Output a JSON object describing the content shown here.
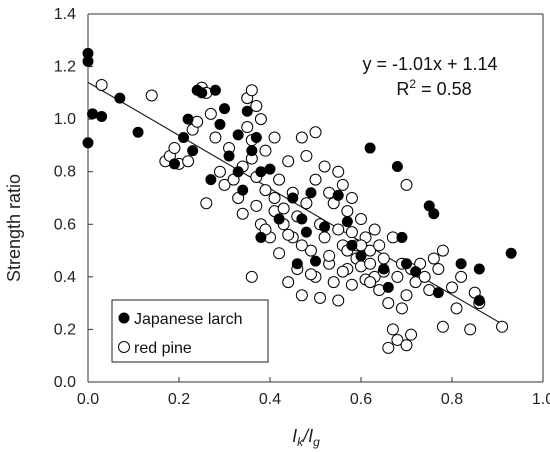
{
  "chart_data": {
    "type": "scatter",
    "xlabel": "Ik/Ig",
    "xlabel_main": "I",
    "xlabel_sub1": "k",
    "xlabel_sep": "/I",
    "xlabel_sub2": "g",
    "ylabel": "Strength ratio",
    "xlim": [
      0,
      1.0
    ],
    "ylim": [
      0,
      1.4
    ],
    "xticks": [
      "0.0",
      "0.2",
      "0.4",
      "0.6",
      "0.8",
      "1.0"
    ],
    "yticks": [
      "0.0",
      "0.2",
      "0.4",
      "0.6",
      "0.8",
      "1.0",
      "1.2",
      "1.4"
    ],
    "grid": false,
    "legend_position": "bottom-left",
    "annotation": {
      "equation": "y = -1.01x + 1.14",
      "r2_prefix": "R",
      "r2_exp": "2",
      "r2_suffix": " = 0.58"
    },
    "trendline": {
      "slope": -1.01,
      "intercept": 1.14,
      "x_range": [
        0.0,
        0.92
      ]
    },
    "series": [
      {
        "name": "Japanese larch",
        "marker": "filled",
        "color": "#000000",
        "points": [
          [
            0.0,
            1.25
          ],
          [
            0.0,
            1.22
          ],
          [
            0.0,
            0.91
          ],
          [
            0.01,
            1.02
          ],
          [
            0.03,
            1.01
          ],
          [
            0.07,
            1.08
          ],
          [
            0.11,
            0.95
          ],
          [
            0.19,
            0.83
          ],
          [
            0.21,
            0.93
          ],
          [
            0.22,
            1.0
          ],
          [
            0.23,
            0.88
          ],
          [
            0.24,
            1.11
          ],
          [
            0.25,
            1.1
          ],
          [
            0.27,
            0.77
          ],
          [
            0.28,
            1.11
          ],
          [
            0.29,
            0.98
          ],
          [
            0.3,
            1.04
          ],
          [
            0.31,
            0.86
          ],
          [
            0.33,
            0.94
          ],
          [
            0.33,
            0.8
          ],
          [
            0.34,
            0.73
          ],
          [
            0.35,
            1.03
          ],
          [
            0.36,
            0.88
          ],
          [
            0.37,
            0.93
          ],
          [
            0.38,
            0.8
          ],
          [
            0.38,
            0.55
          ],
          [
            0.4,
            0.81
          ],
          [
            0.42,
            0.62
          ],
          [
            0.45,
            0.7
          ],
          [
            0.46,
            0.45
          ],
          [
            0.47,
            0.62
          ],
          [
            0.48,
            0.57
          ],
          [
            0.49,
            0.72
          ],
          [
            0.5,
            0.46
          ],
          [
            0.52,
            0.59
          ],
          [
            0.55,
            0.71
          ],
          [
            0.57,
            0.61
          ],
          [
            0.58,
            0.52
          ],
          [
            0.6,
            0.48
          ],
          [
            0.62,
            0.89
          ],
          [
            0.65,
            0.43
          ],
          [
            0.66,
            0.36
          ],
          [
            0.68,
            0.82
          ],
          [
            0.69,
            0.55
          ],
          [
            0.7,
            0.45
          ],
          [
            0.72,
            0.42
          ],
          [
            0.75,
            0.67
          ],
          [
            0.76,
            0.64
          ],
          [
            0.77,
            0.34
          ],
          [
            0.82,
            0.45
          ],
          [
            0.86,
            0.43
          ],
          [
            0.86,
            0.31
          ],
          [
            0.93,
            0.49
          ]
        ]
      },
      {
        "name": "red pine",
        "marker": "open",
        "color": "#000000",
        "points": [
          [
            0.03,
            1.13
          ],
          [
            0.14,
            1.09
          ],
          [
            0.17,
            0.84
          ],
          [
            0.18,
            0.86
          ],
          [
            0.19,
            0.89
          ],
          [
            0.2,
            0.83
          ],
          [
            0.22,
            0.84
          ],
          [
            0.23,
            0.96
          ],
          [
            0.24,
            0.99
          ],
          [
            0.25,
            1.12
          ],
          [
            0.26,
            1.1
          ],
          [
            0.26,
            0.68
          ],
          [
            0.27,
            1.02
          ],
          [
            0.28,
            0.93
          ],
          [
            0.29,
            0.8
          ],
          [
            0.3,
            0.75
          ],
          [
            0.31,
            0.89
          ],
          [
            0.32,
            0.77
          ],
          [
            0.33,
            0.7
          ],
          [
            0.34,
            0.82
          ],
          [
            0.34,
            0.64
          ],
          [
            0.35,
            1.08
          ],
          [
            0.35,
            0.97
          ],
          [
            0.36,
            1.11
          ],
          [
            0.36,
            0.92
          ],
          [
            0.36,
            0.85
          ],
          [
            0.36,
            0.4
          ],
          [
            0.37,
            1.05
          ],
          [
            0.37,
            0.78
          ],
          [
            0.37,
            0.67
          ],
          [
            0.38,
            1.0
          ],
          [
            0.38,
            0.6
          ],
          [
            0.39,
            0.88
          ],
          [
            0.39,
            0.73
          ],
          [
            0.4,
            0.55
          ],
          [
            0.41,
            0.93
          ],
          [
            0.41,
            0.65
          ],
          [
            0.42,
            0.77
          ],
          [
            0.42,
            0.49
          ],
          [
            0.43,
            0.6
          ],
          [
            0.44,
            0.84
          ],
          [
            0.44,
            0.38
          ],
          [
            0.45,
            0.72
          ],
          [
            0.45,
            0.55
          ],
          [
            0.46,
            0.63
          ],
          [
            0.46,
            0.43
          ],
          [
            0.47,
            0.93
          ],
          [
            0.47,
            0.33
          ],
          [
            0.48,
            0.86
          ],
          [
            0.48,
            0.68
          ],
          [
            0.49,
            0.5
          ],
          [
            0.5,
            0.95
          ],
          [
            0.5,
            0.77
          ],
          [
            0.5,
            0.4
          ],
          [
            0.51,
            0.6
          ],
          [
            0.51,
            0.32
          ],
          [
            0.52,
            0.82
          ],
          [
            0.52,
            0.55
          ],
          [
            0.53,
            0.72
          ],
          [
            0.53,
            0.45
          ],
          [
            0.54,
            0.68
          ],
          [
            0.54,
            0.38
          ],
          [
            0.55,
            0.8
          ],
          [
            0.55,
            0.58
          ],
          [
            0.55,
            0.31
          ],
          [
            0.56,
            0.75
          ],
          [
            0.56,
            0.52
          ],
          [
            0.57,
            0.65
          ],
          [
            0.57,
            0.43
          ],
          [
            0.58,
            0.7
          ],
          [
            0.58,
            0.57
          ],
          [
            0.58,
            0.37
          ],
          [
            0.59,
            0.52
          ],
          [
            0.59,
            0.47
          ],
          [
            0.6,
            0.62
          ],
          [
            0.6,
            0.44
          ],
          [
            0.61,
            0.55
          ],
          [
            0.61,
            0.39
          ],
          [
            0.62,
            0.5
          ],
          [
            0.62,
            0.45
          ],
          [
            0.63,
            0.58
          ],
          [
            0.63,
            0.4
          ],
          [
            0.64,
            0.52
          ],
          [
            0.64,
            0.35
          ],
          [
            0.65,
            0.47
          ],
          [
            0.65,
            0.42
          ],
          [
            0.66,
            0.3
          ],
          [
            0.66,
            0.13
          ],
          [
            0.67,
            0.55
          ],
          [
            0.67,
            0.2
          ],
          [
            0.68,
            0.4
          ],
          [
            0.68,
            0.16
          ],
          [
            0.69,
            0.45
          ],
          [
            0.69,
            0.28
          ],
          [
            0.7,
            0.75
          ],
          [
            0.7,
            0.33
          ],
          [
            0.7,
            0.14
          ],
          [
            0.71,
            0.43
          ],
          [
            0.71,
            0.18
          ],
          [
            0.72,
            0.38
          ],
          [
            0.73,
            0.45
          ],
          [
            0.74,
            0.4
          ],
          [
            0.75,
            0.35
          ],
          [
            0.76,
            0.47
          ],
          [
            0.77,
            0.43
          ],
          [
            0.78,
            0.5
          ],
          [
            0.78,
            0.21
          ],
          [
            0.8,
            0.36
          ],
          [
            0.81,
            0.28
          ],
          [
            0.82,
            0.4
          ],
          [
            0.84,
            0.2
          ],
          [
            0.85,
            0.34
          ],
          [
            0.86,
            0.3
          ],
          [
            0.91,
            0.21
          ],
          [
            0.56,
            0.42
          ],
          [
            0.53,
            0.48
          ],
          [
            0.49,
            0.41
          ],
          [
            0.44,
            0.56
          ],
          [
            0.41,
            0.7
          ],
          [
            0.39,
            0.58
          ],
          [
            0.57,
            0.5
          ],
          [
            0.6,
            0.52
          ],
          [
            0.62,
            0.38
          ],
          [
            0.47,
            0.52
          ],
          [
            0.43,
            0.66
          ]
        ]
      }
    ]
  }
}
